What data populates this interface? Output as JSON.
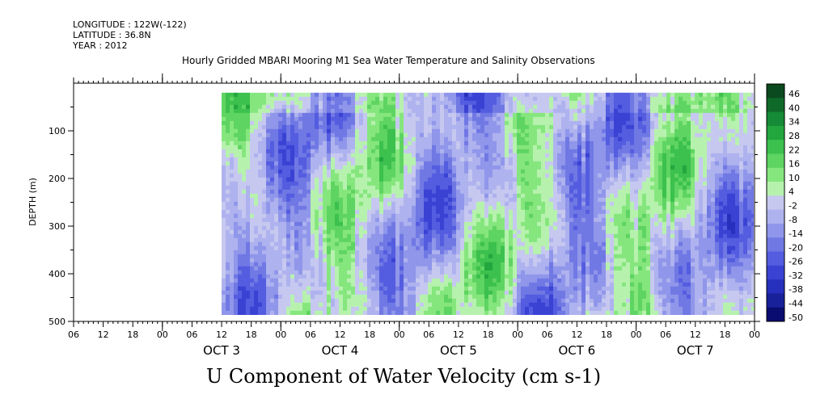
{
  "header": {
    "longitude": "LONGITUDE : 122W(-122)",
    "latitude": "LATITUDE : 36.8N",
    "year": "YEAR : 2012"
  },
  "title": "Hourly Gridded MBARI Mooring M1 Sea Water Temperature and Salinity Observations",
  "bottom_title": "U Component of Water Velocity (cm s-1)",
  "chart_data": {
    "type": "heatmap",
    "title": "Hourly Gridded MBARI Mooring M1 Sea Water Temperature and Salinity Observations",
    "xlabel": "",
    "ylabel": "DEPTH (m)",
    "x_range": [
      "OCT 2 06:00",
      "OCT 8 00:00"
    ],
    "data_x_range": [
      "OCT 3 12:00",
      "OCT 8 00:00"
    ],
    "ylim": [
      500,
      0
    ],
    "data_depth_range": [
      20,
      485
    ],
    "y_ticks": [
      100,
      200,
      300,
      400,
      500
    ],
    "x_hour_ticks": [
      "06",
      "12",
      "18",
      "00",
      "06",
      "12",
      "18",
      "00",
      "06",
      "12",
      "18",
      "00",
      "06",
      "12",
      "18",
      "00",
      "06",
      "12",
      "18",
      "00",
      "06",
      "12",
      "18",
      "00"
    ],
    "x_day_labels": [
      "OCT 3",
      "OCT 4",
      "OCT 5",
      "OCT 6",
      "OCT 7"
    ],
    "colorbar": {
      "levels": [
        46,
        40,
        34,
        28,
        22,
        16,
        10,
        4,
        -2,
        -8,
        -14,
        -20,
        -26,
        -32,
        -38,
        -44,
        -50
      ],
      "range": [
        -50,
        50
      ],
      "colors": [
        "#0a4a1e",
        "#0f6a2a",
        "#168a36",
        "#22a63e",
        "#3cc04e",
        "#5ed462",
        "#86e67e",
        "#b6f2ae",
        "#c6c8f0",
        "#aeb2ee",
        "#9096ea",
        "#7078e4",
        "#545ce0",
        "#3a42d4",
        "#2630bc",
        "#18209a",
        "#0a0c70"
      ]
    },
    "field_description": "U velocity values mostly between -20 and +20 cm s-1; green (positive) patches near surface and scattered columns, blue (negative) elsewhere"
  }
}
